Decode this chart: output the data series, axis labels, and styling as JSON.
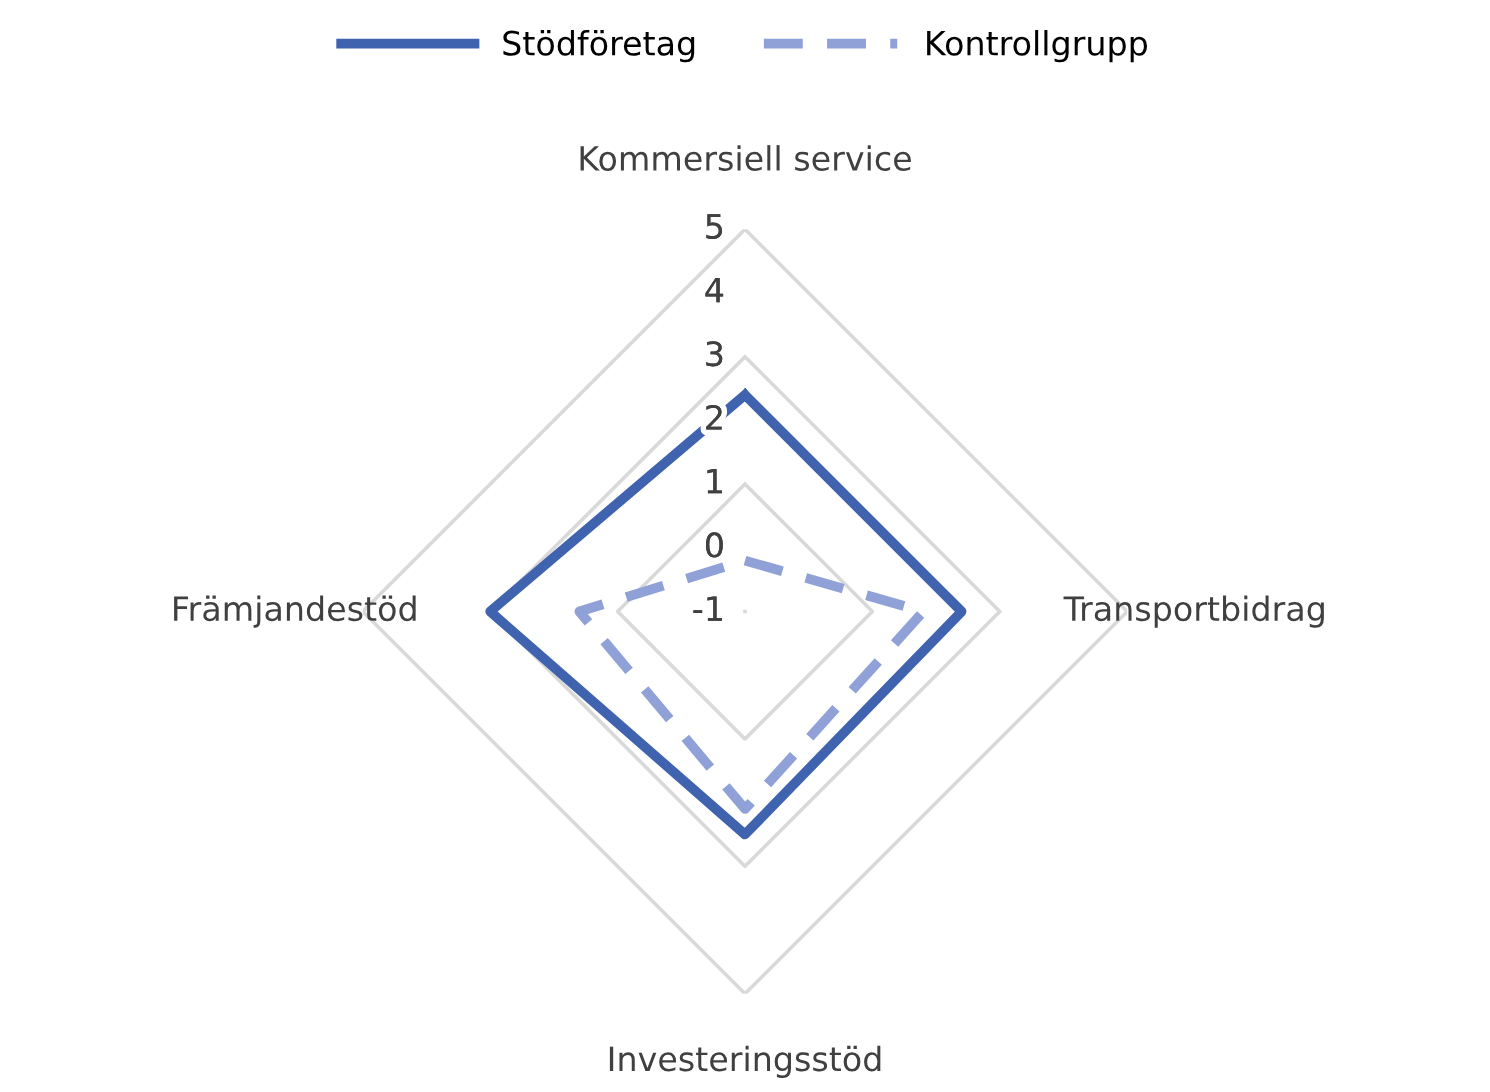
{
  "chart_data": {
    "type": "radar",
    "categories": [
      "Kommersiell service",
      "Transportbidrag",
      "Investeringsstöd",
      "Främjandestöd"
    ],
    "series": [
      {
        "name": "Stödföretag",
        "color": "#4063b0",
        "values": [
          2.4,
          2.4,
          2.5,
          3.0
        ],
        "line_style": "solid"
      },
      {
        "name": "Kontrollgrupp",
        "color": "#8fa1d6",
        "values": [
          -0.2,
          1.8,
          2.1,
          1.6
        ],
        "line_style": "dashed"
      }
    ],
    "ylim": [
      -1,
      5
    ],
    "yticks": [
      -1,
      0,
      1,
      2,
      3,
      4,
      5
    ],
    "grid": true,
    "legend": "top",
    "marker": "none"
  }
}
